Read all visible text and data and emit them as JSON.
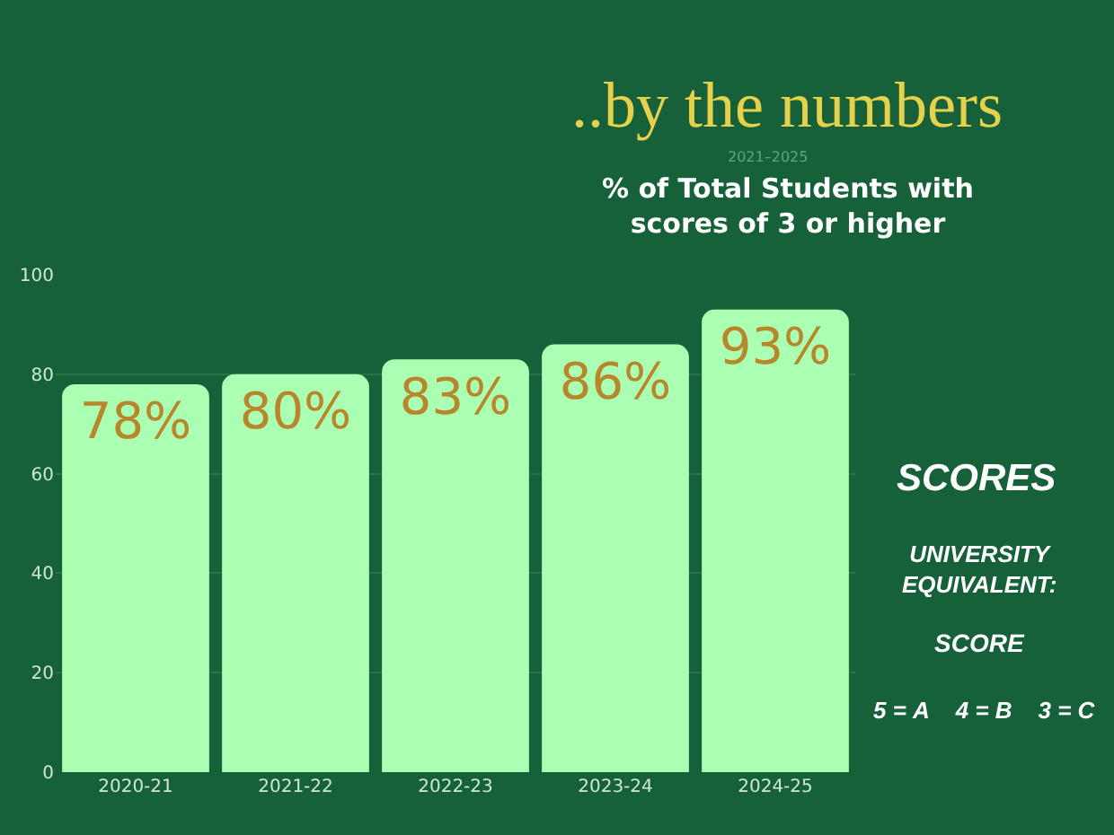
{
  "chart_data": {
    "type": "bar",
    "title": "..by the numbers",
    "subtitle": "2021–2025",
    "annotations": [
      "% of Total Students with\nscores of 3 or higher",
      "SCORES",
      "UNIVERSITY\nEQUIVALENT:",
      "SCORE",
      "5 = A    4 = B    3 = C"
    ],
    "categories": [
      "2020-21",
      "2021-22",
      "2022-23",
      "2023-24",
      "2024-25"
    ],
    "values": [
      78,
      80,
      83,
      86,
      93
    ],
    "value_labels": [
      "78%",
      "80%",
      "83%",
      "86%",
      "93%"
    ],
    "color": "#abffb2",
    "ylim": [
      0,
      100
    ],
    "yticks": [
      0,
      20,
      40,
      60,
      80,
      100
    ],
    "grid": "y"
  }
}
